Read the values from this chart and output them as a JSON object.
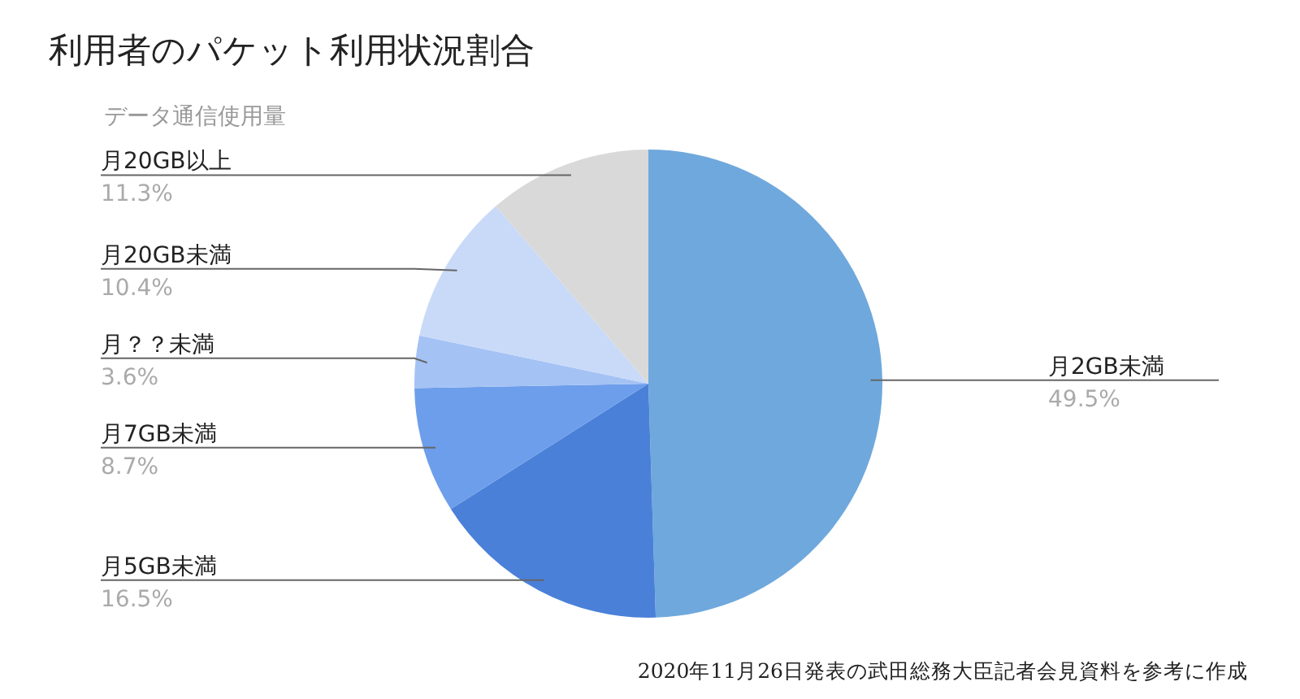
{
  "chart_data": {
    "type": "pie",
    "title": "利用者のパケット利用状況割合",
    "legend_title": "データ通信使用量",
    "categories": [
      "月2GB未満",
      "月5GB未満",
      "月7GB未満",
      "月？？未満",
      "月20GB未満",
      "月20GB以上"
    ],
    "values": [
      49.5,
      16.5,
      8.7,
      3.6,
      10.4,
      11.3
    ],
    "value_labels": [
      "49.5%",
      "16.5%",
      "8.7%",
      "3.6%",
      "10.4%",
      "11.3%"
    ],
    "colors": [
      "#6fa8dc",
      "#4a80d8",
      "#6d9eeb",
      "#a4c2f4",
      "#c9daf8",
      "#d9d9d9"
    ],
    "annotations": [
      "2020年11月26日発表の武田総務大臣記者会見資料を参考に作成"
    ]
  }
}
